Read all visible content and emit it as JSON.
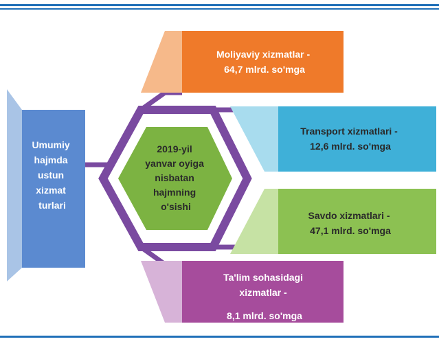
{
  "center": {
    "lines": [
      "2019-yil",
      "yanvar oyiga",
      "nisbatan",
      "hajmning",
      "o'sishi"
    ]
  },
  "source": {
    "lines": [
      "Umumiy",
      "hajmda",
      "ustun",
      "xizmat",
      "turlari"
    ]
  },
  "nodes": [
    {
      "lines": [
        "Moliyaviy xizmatlar -",
        "64,7 mlrd. so'mga"
      ]
    },
    {
      "lines": [
        "Transport xizmatlari -",
        "12,6 mlrd. so'mga"
      ]
    },
    {
      "lines": [
        "Savdo xizmatlari -",
        "47,1  mlrd. so'mga"
      ]
    },
    {
      "lines": [
        "Ta'lim sohasidagi",
        "xizmatlar  -",
        "8,1 mlrd. so'mga"
      ]
    }
  ]
}
